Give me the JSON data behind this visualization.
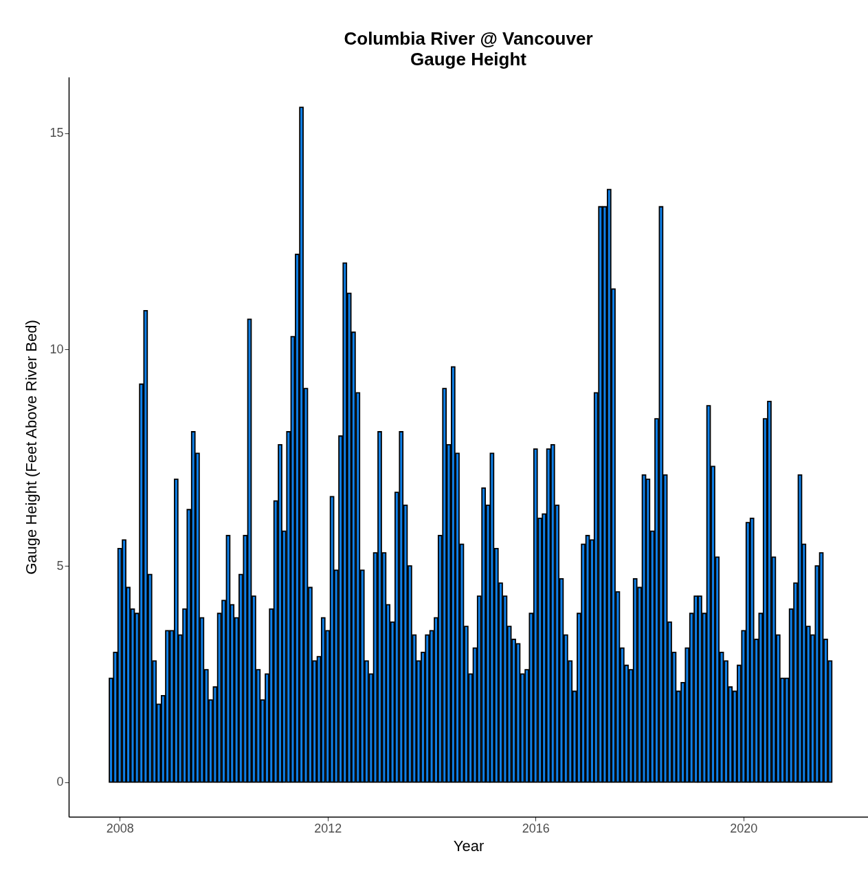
{
  "chart_data": {
    "type": "bar",
    "title": "Columbia River @ Vancouver",
    "subtitle": "Gauge Height",
    "xlabel": "Year",
    "ylabel": "Gauge Height (Feet Above River Bed)",
    "x": [
      "2007-11",
      "2007-12",
      "2008-01",
      "2008-02",
      "2008-03",
      "2008-04",
      "2008-05",
      "2008-06",
      "2008-07",
      "2008-08",
      "2008-09",
      "2008-10",
      "2008-11",
      "2008-12",
      "2009-01",
      "2009-02",
      "2009-03",
      "2009-04",
      "2009-05",
      "2009-06",
      "2009-07",
      "2009-08",
      "2009-09",
      "2009-10",
      "2009-11",
      "2009-12",
      "2010-01",
      "2010-02",
      "2010-03",
      "2010-04",
      "2010-05",
      "2010-06",
      "2010-07",
      "2010-08",
      "2010-09",
      "2010-10",
      "2010-11",
      "2010-12",
      "2011-01",
      "2011-02",
      "2011-03",
      "2011-04",
      "2011-05",
      "2011-06",
      "2011-07",
      "2011-08",
      "2011-09",
      "2011-10",
      "2011-11",
      "2011-12",
      "2012-01",
      "2012-02",
      "2012-03",
      "2012-04",
      "2012-05",
      "2012-06",
      "2012-07",
      "2012-08",
      "2012-09",
      "2012-10",
      "2012-11",
      "2012-12",
      "2013-01",
      "2013-02",
      "2013-03",
      "2013-04",
      "2013-05",
      "2013-06",
      "2013-07",
      "2013-08",
      "2013-09",
      "2013-10",
      "2013-11",
      "2013-12",
      "2014-01",
      "2014-02",
      "2014-03",
      "2014-04",
      "2014-05",
      "2014-06",
      "2014-07",
      "2014-08",
      "2014-09",
      "2014-10",
      "2014-11",
      "2014-12",
      "2015-01",
      "2015-02",
      "2015-03",
      "2015-04",
      "2015-05",
      "2015-06",
      "2015-07",
      "2015-08",
      "2015-09",
      "2015-10",
      "2015-11",
      "2015-12",
      "2016-01",
      "2016-02",
      "2016-03",
      "2016-04",
      "2016-05",
      "2016-06",
      "2016-07",
      "2016-08",
      "2016-09",
      "2016-10",
      "2016-11",
      "2016-12",
      "2017-01",
      "2017-02",
      "2017-03",
      "2017-04",
      "2017-05",
      "2017-06",
      "2017-07",
      "2017-08",
      "2017-09",
      "2017-10",
      "2017-11",
      "2017-12",
      "2018-01",
      "2018-02",
      "2018-03",
      "2018-04",
      "2018-05",
      "2018-06",
      "2018-07",
      "2018-08",
      "2018-09",
      "2018-10",
      "2018-11",
      "2018-12",
      "2019-01",
      "2019-02",
      "2019-03",
      "2019-04",
      "2019-05",
      "2019-06",
      "2019-07",
      "2019-08",
      "2019-09",
      "2019-10",
      "2019-11",
      "2019-12",
      "2020-01",
      "2020-02",
      "2020-03",
      "2020-04",
      "2020-05",
      "2020-06",
      "2020-07",
      "2020-08",
      "2020-09",
      "2020-10",
      "2020-11",
      "2020-12",
      "2021-01",
      "2021-02",
      "2021-03",
      "2021-04",
      "2021-05",
      "2021-06",
      "2021-07",
      "2021-08",
      "2021-09"
    ],
    "values": [
      2.4,
      3.0,
      5.4,
      5.6,
      4.5,
      4.0,
      3.9,
      9.2,
      10.9,
      4.8,
      2.8,
      1.8,
      2.0,
      3.5,
      3.5,
      7.0,
      3.4,
      4.0,
      6.3,
      8.1,
      7.6,
      3.8,
      2.6,
      1.9,
      2.2,
      3.9,
      4.2,
      5.7,
      4.1,
      3.8,
      4.8,
      5.7,
      10.7,
      4.3,
      2.6,
      1.9,
      2.5,
      4.0,
      6.5,
      7.8,
      5.8,
      8.1,
      10.3,
      12.2,
      15.6,
      9.1,
      4.5,
      2.8,
      2.9,
      3.8,
      3.5,
      6.6,
      4.9,
      8.0,
      12.0,
      11.3,
      10.4,
      9.0,
      4.9,
      2.8,
      2.5,
      5.3,
      8.1,
      5.3,
      4.1,
      3.7,
      6.7,
      8.1,
      6.4,
      5.0,
      3.4,
      2.8,
      3.0,
      3.4,
      3.5,
      3.8,
      5.7,
      9.1,
      7.8,
      9.6,
      7.6,
      5.5,
      3.6,
      2.5,
      3.1,
      4.3,
      6.8,
      6.4,
      7.6,
      5.4,
      4.6,
      4.3,
      3.6,
      3.3,
      3.2,
      2.5,
      2.6,
      3.9,
      7.7,
      6.1,
      6.2,
      7.7,
      7.8,
      6.4,
      4.7,
      3.4,
      2.8,
      2.1,
      3.9,
      5.5,
      5.7,
      5.6,
      9.0,
      13.3,
      13.3,
      13.7,
      11.4,
      4.4,
      3.1,
      2.7,
      2.6,
      4.7,
      4.5,
      7.1,
      7.0,
      5.8,
      8.4,
      13.3,
      7.1,
      3.7,
      3.0,
      2.1,
      2.3,
      3.1,
      3.9,
      4.3,
      4.3,
      3.9,
      8.7,
      7.3,
      5.2,
      3.0,
      2.8,
      2.2,
      2.1,
      2.7,
      3.5,
      6.0,
      6.1,
      3.3,
      3.9,
      8.4,
      8.8,
      5.2,
      3.4,
      2.4,
      2.4,
      4.0,
      4.6,
      7.1,
      5.5,
      3.6,
      3.4,
      5.0,
      5.3,
      3.3,
      2.8
    ],
    "color": "#0f7fe6",
    "xlim": [
      "2007-02",
      "2022-05"
    ],
    "xticks": [
      "2008",
      "2012",
      "2016",
      "2020"
    ],
    "ylim": [
      -0.8,
      16.3
    ],
    "yticks": [
      0,
      5,
      10,
      15
    ]
  }
}
